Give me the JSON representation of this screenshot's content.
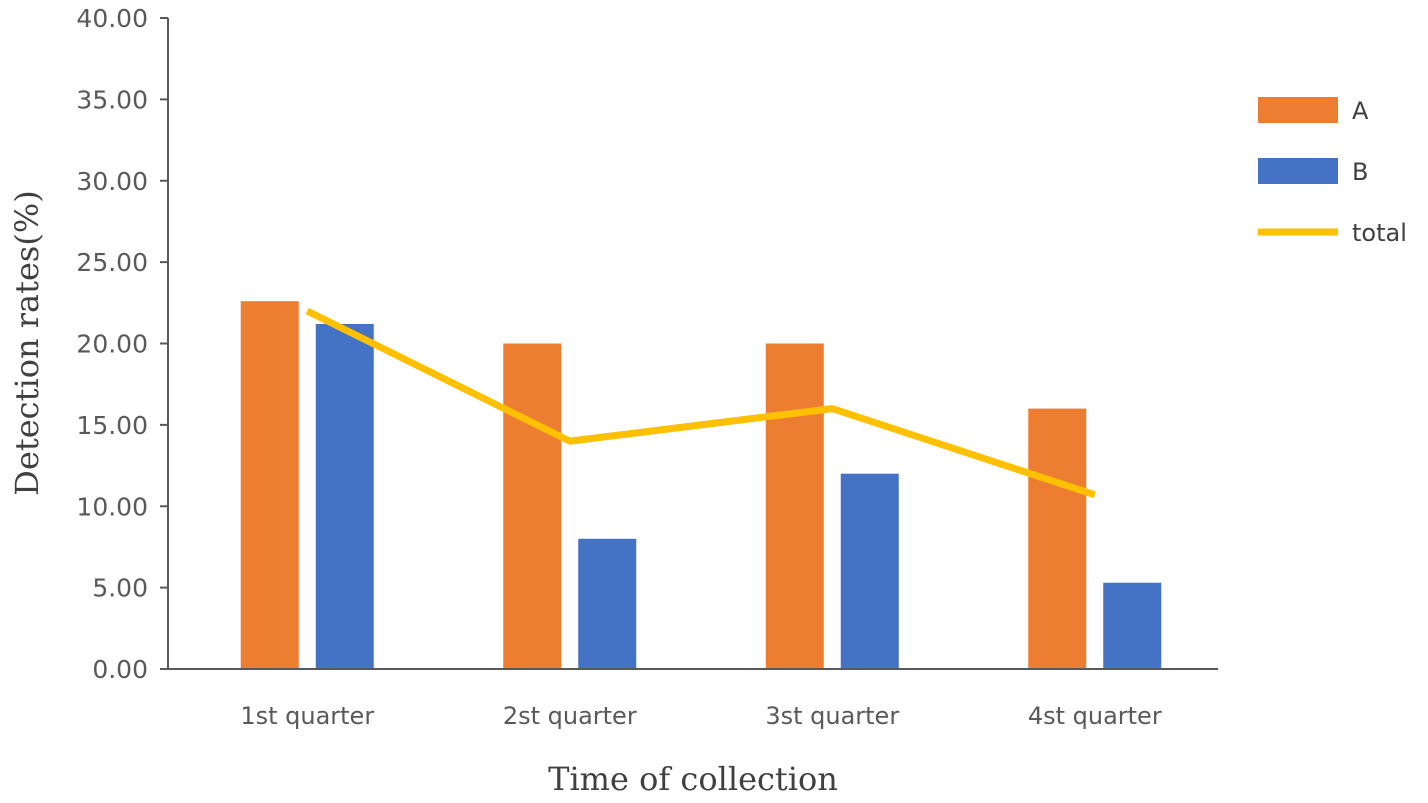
{
  "chart_data": {
    "type": "bar",
    "title": "",
    "xlabel": "Time of  collection",
    "ylabel": "Detection rates(%)",
    "ylim": [
      0,
      40
    ],
    "yticks": [
      "0.00",
      "5.00",
      "10.00",
      "15.00",
      "20.00",
      "25.00",
      "30.00",
      "35.00",
      "40.00"
    ],
    "categories": [
      "1st quarter",
      "2st quarter",
      "3st quarter",
      "4st quarter"
    ],
    "series": [
      {
        "name": "A",
        "kind": "bar",
        "color": "#ED7D31",
        "values": [
          22.6,
          20.0,
          20.0,
          16.0
        ]
      },
      {
        "name": "B",
        "kind": "bar",
        "color": "#4472C4",
        "values": [
          21.2,
          8.0,
          12.0,
          5.3
        ]
      },
      {
        "name": "total",
        "kind": "line",
        "color": "#FFC000",
        "values": [
          22.0,
          14.0,
          16.0,
          10.7
        ]
      }
    ],
    "legend_position": "right",
    "grid": false
  }
}
